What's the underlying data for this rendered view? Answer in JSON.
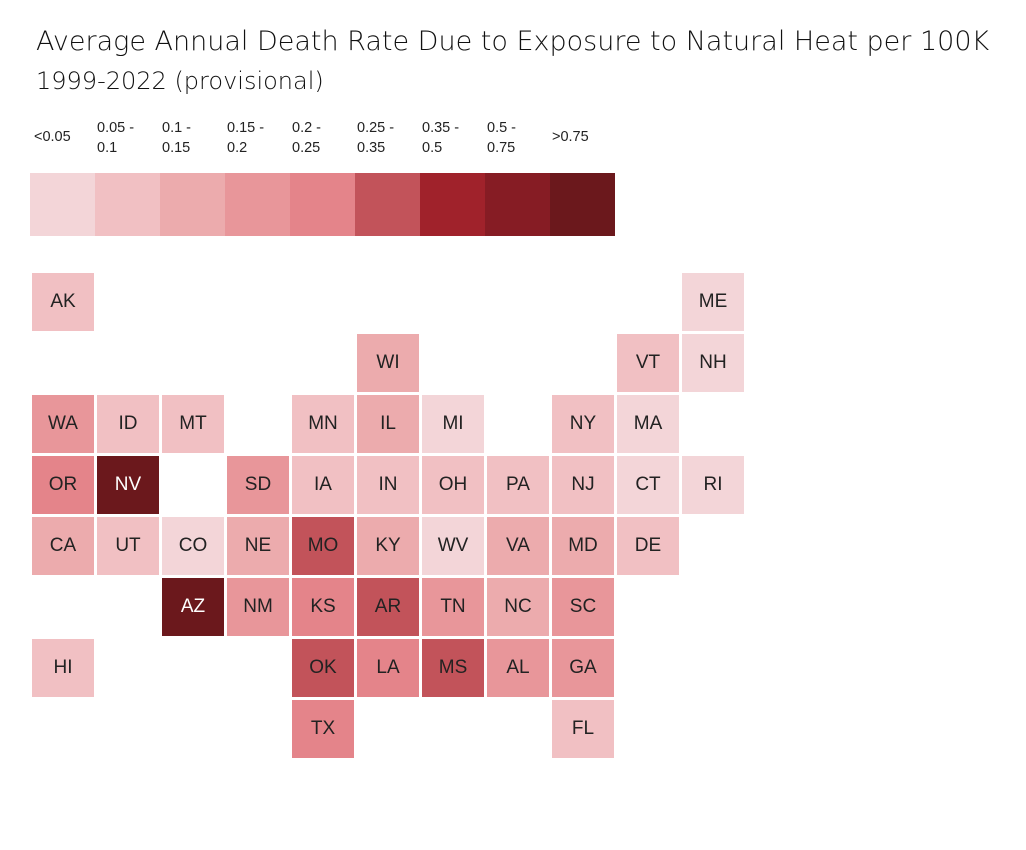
{
  "title": "Average Annual Death Rate Due to Exposure to Natural Heat per 100K",
  "subtitle": "1999-2022 (provisional)",
  "legend": {
    "bins": [
      {
        "line1": "<0.05",
        "line2": "",
        "color": "#f3d5d8"
      },
      {
        "line1": "0.05 -",
        "line2": "0.1",
        "color": "#f1c0c3"
      },
      {
        "line1": "0.1 -",
        "line2": "0.15",
        "color": "#ecabad"
      },
      {
        "line1": "0.15 -",
        "line2": "0.2",
        "color": "#e8969a"
      },
      {
        "line1": "0.2 -",
        "line2": "0.25",
        "color": "#e4848a"
      },
      {
        "line1": "0.25 -",
        "line2": "0.35",
        "color": "#c2535a"
      },
      {
        "line1": "0.35 -",
        "line2": "0.5",
        "color": "#a0222b"
      },
      {
        "line1": "0.5 -",
        "line2": "0.75",
        "color": "#861c24"
      },
      {
        "line1": ">0.75",
        "line2": "",
        "color": "#6b181c"
      }
    ]
  },
  "states": [
    {
      "abbr": "AK",
      "bin": 1,
      "col": 0,
      "row": 0
    },
    {
      "abbr": "ME",
      "bin": 0,
      "col": 10,
      "row": 0
    },
    {
      "abbr": "WI",
      "bin": 2,
      "col": 5,
      "row": 1
    },
    {
      "abbr": "VT",
      "bin": 1,
      "col": 9,
      "row": 1
    },
    {
      "abbr": "NH",
      "bin": 0,
      "col": 10,
      "row": 1
    },
    {
      "abbr": "WA",
      "bin": 3,
      "col": 0,
      "row": 2
    },
    {
      "abbr": "ID",
      "bin": 1,
      "col": 1,
      "row": 2
    },
    {
      "abbr": "MT",
      "bin": 1,
      "col": 2,
      "row": 2
    },
    {
      "abbr": "MN",
      "bin": 1,
      "col": 4,
      "row": 2
    },
    {
      "abbr": "IL",
      "bin": 2,
      "col": 5,
      "row": 2
    },
    {
      "abbr": "MI",
      "bin": 0,
      "col": 6,
      "row": 2
    },
    {
      "abbr": "NY",
      "bin": 1,
      "col": 8,
      "row": 2
    },
    {
      "abbr": "MA",
      "bin": 0,
      "col": 9,
      "row": 2
    },
    {
      "abbr": "OR",
      "bin": 4,
      "col": 0,
      "row": 3
    },
    {
      "abbr": "NV",
      "bin": 8,
      "col": 1,
      "row": 3
    },
    {
      "abbr": "SD",
      "bin": 3,
      "col": 3,
      "row": 3
    },
    {
      "abbr": "IA",
      "bin": 1,
      "col": 4,
      "row": 3
    },
    {
      "abbr": "IN",
      "bin": 1,
      "col": 5,
      "row": 3
    },
    {
      "abbr": "OH",
      "bin": 1,
      "col": 6,
      "row": 3
    },
    {
      "abbr": "PA",
      "bin": 1,
      "col": 7,
      "row": 3
    },
    {
      "abbr": "NJ",
      "bin": 1,
      "col": 8,
      "row": 3
    },
    {
      "abbr": "CT",
      "bin": 0,
      "col": 9,
      "row": 3
    },
    {
      "abbr": "RI",
      "bin": 0,
      "col": 10,
      "row": 3
    },
    {
      "abbr": "CA",
      "bin": 2,
      "col": 0,
      "row": 4
    },
    {
      "abbr": "UT",
      "bin": 1,
      "col": 1,
      "row": 4
    },
    {
      "abbr": "CO",
      "bin": 0,
      "col": 2,
      "row": 4
    },
    {
      "abbr": "NE",
      "bin": 2,
      "col": 3,
      "row": 4
    },
    {
      "abbr": "MO",
      "bin": 5,
      "col": 4,
      "row": 4
    },
    {
      "abbr": "KY",
      "bin": 2,
      "col": 5,
      "row": 4
    },
    {
      "abbr": "WV",
      "bin": 0,
      "col": 6,
      "row": 4
    },
    {
      "abbr": "VA",
      "bin": 2,
      "col": 7,
      "row": 4
    },
    {
      "abbr": "MD",
      "bin": 2,
      "col": 8,
      "row": 4
    },
    {
      "abbr": "DE",
      "bin": 1,
      "col": 9,
      "row": 4
    },
    {
      "abbr": "AZ",
      "bin": 8,
      "col": 2,
      "row": 5
    },
    {
      "abbr": "NM",
      "bin": 3,
      "col": 3,
      "row": 5
    },
    {
      "abbr": "KS",
      "bin": 4,
      "col": 4,
      "row": 5
    },
    {
      "abbr": "AR",
      "bin": 5,
      "col": 5,
      "row": 5
    },
    {
      "abbr": "TN",
      "bin": 3,
      "col": 6,
      "row": 5
    },
    {
      "abbr": "NC",
      "bin": 2,
      "col": 7,
      "row": 5
    },
    {
      "abbr": "SC",
      "bin": 3,
      "col": 8,
      "row": 5
    },
    {
      "abbr": "HI",
      "bin": 1,
      "col": 0,
      "row": 6
    },
    {
      "abbr": "OK",
      "bin": 5,
      "col": 4,
      "row": 6
    },
    {
      "abbr": "LA",
      "bin": 4,
      "col": 5,
      "row": 6
    },
    {
      "abbr": "MS",
      "bin": 5,
      "col": 6,
      "row": 6
    },
    {
      "abbr": "AL",
      "bin": 3,
      "col": 7,
      "row": 6
    },
    {
      "abbr": "GA",
      "bin": 3,
      "col": 8,
      "row": 6
    },
    {
      "abbr": "TX",
      "bin": 4,
      "col": 4,
      "row": 7
    },
    {
      "abbr": "FL",
      "bin": 1,
      "col": 8,
      "row": 7
    }
  ]
}
